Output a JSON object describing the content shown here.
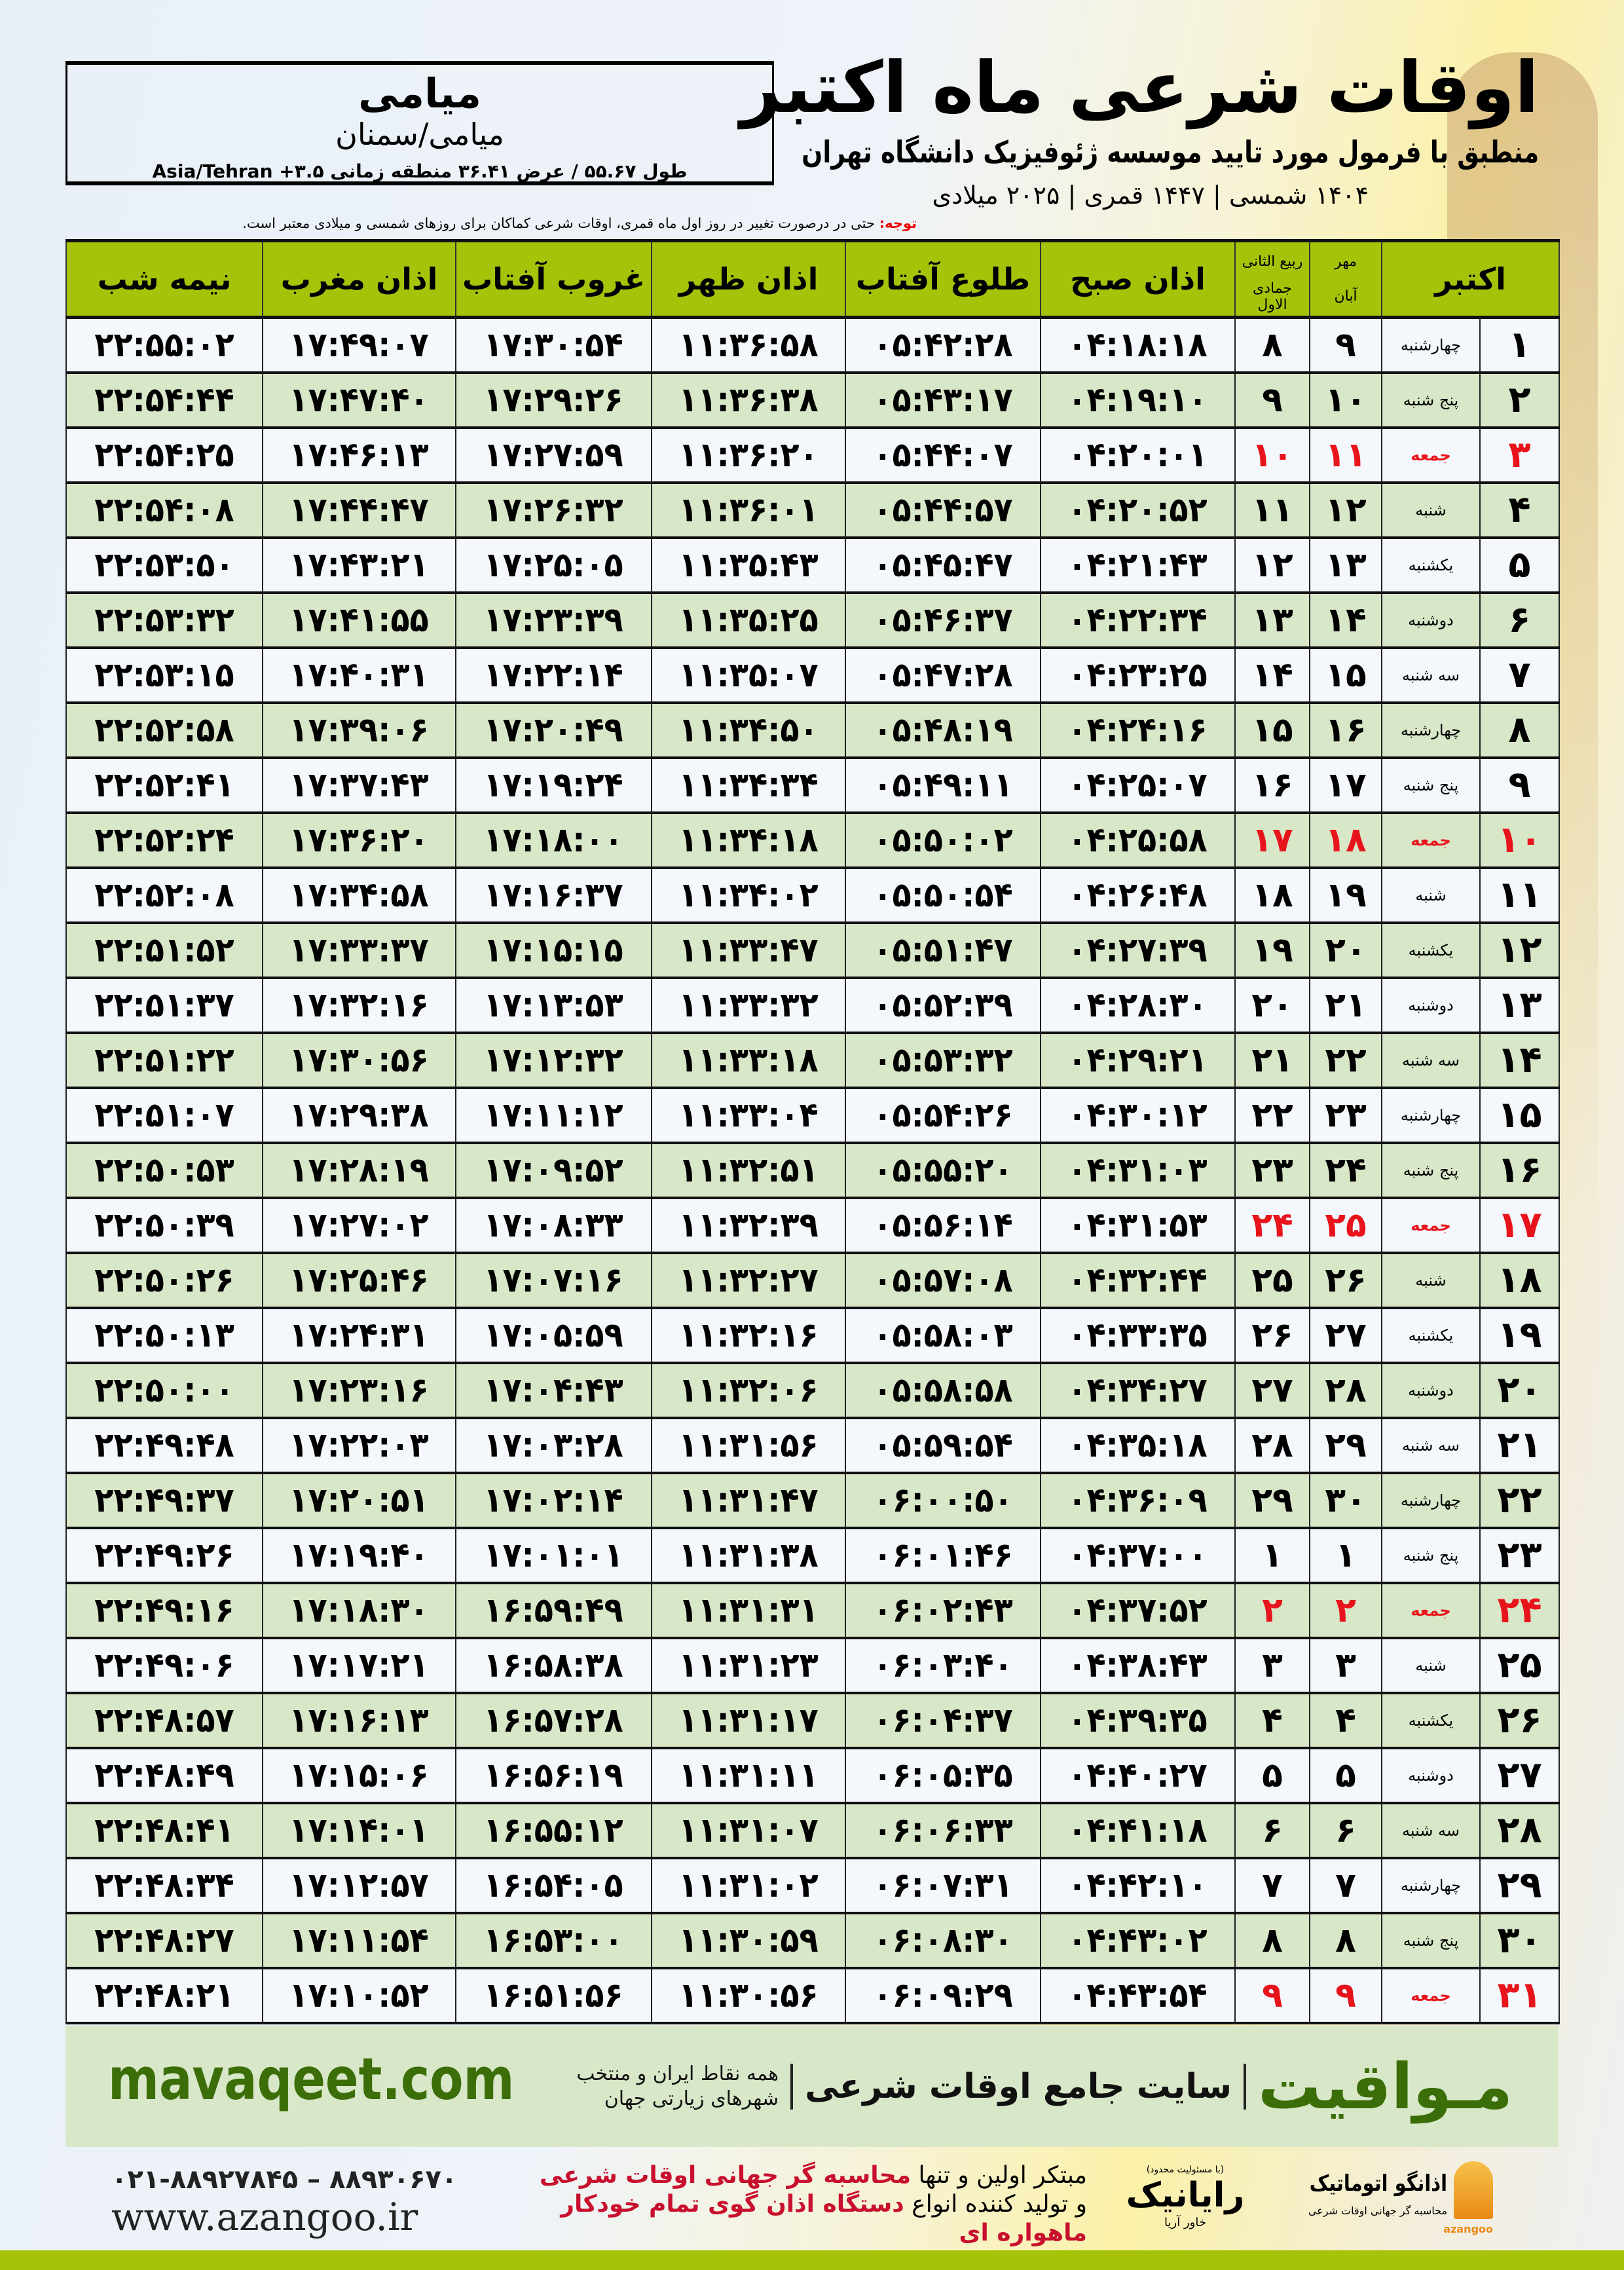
{
  "header": {
    "title": "اوقات شرعی ماه اکتبر",
    "subtitle": "منطبق با فرمول مورد تایید موسسه ژئوفیزیک دانشگاه تهران",
    "years": "۱۴۰۴ شمسی | ۱۴۴۷ قمری | ۲۰۲۵ میلادی"
  },
  "location": {
    "name": "میامی",
    "region": "میامی/سمنان",
    "coords": "طول ۵۵.۶۷ / عرض ۳۶.۴۱ منطقه زمانی ۳.۵+ Asia/Tehran"
  },
  "note": {
    "label": "توجه:",
    "text": " حتی در درصورت تغییر در روز اول ماه قمری، اوقات شرعی کماکان برای روزهای شمسی و میلادی معتبر است."
  },
  "columns": {
    "month": "اکتبر",
    "shamsi_top": "مهر",
    "shamsi_bottom": "آبان",
    "lunar_top": "ربیع الثانی",
    "lunar_bottom": "جمادی الاول",
    "sobh": "اذان صبح",
    "tolu": "طلوع آفتاب",
    "zohr": "اذان ظهر",
    "ghorub": "غروب آفتاب",
    "maghreb": "اذان مغرب",
    "nimeshab": "نیمه شب"
  },
  "colors": {
    "header_green": "#a6c30a",
    "row_green": "#d8e7c8",
    "friday_red": "#e8141c",
    "brand_green": "#3b6d08"
  },
  "rows": [
    [
      "۱",
      "چهارشنبه",
      "۹",
      "۸",
      "۰۴:۱۸:۱۸",
      "۰۵:۴۲:۲۸",
      "۱۱:۳۶:۵۸",
      "۱۷:۳۰:۵۴",
      "۱۷:۴۹:۰۷",
      "۲۲:۵۵:۰۲"
    ],
    [
      "۲",
      "پنج شنبه",
      "۱۰",
      "۹",
      "۰۴:۱۹:۱۰",
      "۰۵:۴۳:۱۷",
      "۱۱:۳۶:۳۸",
      "۱۷:۲۹:۲۶",
      "۱۷:۴۷:۴۰",
      "۲۲:۵۴:۴۴"
    ],
    [
      "۳",
      "جمعه",
      "۱۱",
      "۱۰",
      "۰۴:۲۰:۰۱",
      "۰۵:۴۴:۰۷",
      "۱۱:۳۶:۲۰",
      "۱۷:۲۷:۵۹",
      "۱۷:۴۶:۱۳",
      "۲۲:۵۴:۲۵"
    ],
    [
      "۴",
      "شنبه",
      "۱۲",
      "۱۱",
      "۰۴:۲۰:۵۲",
      "۰۵:۴۴:۵۷",
      "۱۱:۳۶:۰۱",
      "۱۷:۲۶:۳۲",
      "۱۷:۴۴:۴۷",
      "۲۲:۵۴:۰۸"
    ],
    [
      "۵",
      "یکشنبه",
      "۱۳",
      "۱۲",
      "۰۴:۲۱:۴۳",
      "۰۵:۴۵:۴۷",
      "۱۱:۳۵:۴۳",
      "۱۷:۲۵:۰۵",
      "۱۷:۴۳:۲۱",
      "۲۲:۵۳:۵۰"
    ],
    [
      "۶",
      "دوشنبه",
      "۱۴",
      "۱۳",
      "۰۴:۲۲:۳۴",
      "۰۵:۴۶:۳۷",
      "۱۱:۳۵:۲۵",
      "۱۷:۲۳:۳۹",
      "۱۷:۴۱:۵۵",
      "۲۲:۵۳:۳۲"
    ],
    [
      "۷",
      "سه شنبه",
      "۱۵",
      "۱۴",
      "۰۴:۲۳:۲۵",
      "۰۵:۴۷:۲۸",
      "۱۱:۳۵:۰۷",
      "۱۷:۲۲:۱۴",
      "۱۷:۴۰:۳۱",
      "۲۲:۵۳:۱۵"
    ],
    [
      "۸",
      "چهارشنبه",
      "۱۶",
      "۱۵",
      "۰۴:۲۴:۱۶",
      "۰۵:۴۸:۱۹",
      "۱۱:۳۴:۵۰",
      "۱۷:۲۰:۴۹",
      "۱۷:۳۹:۰۶",
      "۲۲:۵۲:۵۸"
    ],
    [
      "۹",
      "پنج شنبه",
      "۱۷",
      "۱۶",
      "۰۴:۲۵:۰۷",
      "۰۵:۴۹:۱۱",
      "۱۱:۳۴:۳۴",
      "۱۷:۱۹:۲۴",
      "۱۷:۳۷:۴۳",
      "۲۲:۵۲:۴۱"
    ],
    [
      "۱۰",
      "جمعه",
      "۱۸",
      "۱۷",
      "۰۴:۲۵:۵۸",
      "۰۵:۵۰:۰۲",
      "۱۱:۳۴:۱۸",
      "۱۷:۱۸:۰۰",
      "۱۷:۳۶:۲۰",
      "۲۲:۵۲:۲۴"
    ],
    [
      "۱۱",
      "شنبه",
      "۱۹",
      "۱۸",
      "۰۴:۲۶:۴۸",
      "۰۵:۵۰:۵۴",
      "۱۱:۳۴:۰۲",
      "۱۷:۱۶:۳۷",
      "۱۷:۳۴:۵۸",
      "۲۲:۵۲:۰۸"
    ],
    [
      "۱۲",
      "یکشنبه",
      "۲۰",
      "۱۹",
      "۰۴:۲۷:۳۹",
      "۰۵:۵۱:۴۷",
      "۱۱:۳۳:۴۷",
      "۱۷:۱۵:۱۵",
      "۱۷:۳۳:۳۷",
      "۲۲:۵۱:۵۲"
    ],
    [
      "۱۳",
      "دوشنبه",
      "۲۱",
      "۲۰",
      "۰۴:۲۸:۳۰",
      "۰۵:۵۲:۳۹",
      "۱۱:۳۳:۳۲",
      "۱۷:۱۳:۵۳",
      "۱۷:۳۲:۱۶",
      "۲۲:۵۱:۳۷"
    ],
    [
      "۱۴",
      "سه شنبه",
      "۲۲",
      "۲۱",
      "۰۴:۲۹:۲۱",
      "۰۵:۵۳:۳۲",
      "۱۱:۳۳:۱۸",
      "۱۷:۱۲:۳۲",
      "۱۷:۳۰:۵۶",
      "۲۲:۵۱:۲۲"
    ],
    [
      "۱۵",
      "چهارشنبه",
      "۲۳",
      "۲۲",
      "۰۴:۳۰:۱۲",
      "۰۵:۵۴:۲۶",
      "۱۱:۳۳:۰۴",
      "۱۷:۱۱:۱۲",
      "۱۷:۲۹:۳۸",
      "۲۲:۵۱:۰۷"
    ],
    [
      "۱۶",
      "پنج شنبه",
      "۲۴",
      "۲۳",
      "۰۴:۳۱:۰۳",
      "۰۵:۵۵:۲۰",
      "۱۱:۳۲:۵۱",
      "۱۷:۰۹:۵۲",
      "۱۷:۲۸:۱۹",
      "۲۲:۵۰:۵۳"
    ],
    [
      "۱۷",
      "جمعه",
      "۲۵",
      "۲۴",
      "۰۴:۳۱:۵۳",
      "۰۵:۵۶:۱۴",
      "۱۱:۳۲:۳۹",
      "۱۷:۰۸:۳۳",
      "۱۷:۲۷:۰۲",
      "۲۲:۵۰:۳۹"
    ],
    [
      "۱۸",
      "شنبه",
      "۲۶",
      "۲۵",
      "۰۴:۳۲:۴۴",
      "۰۵:۵۷:۰۸",
      "۱۱:۳۲:۲۷",
      "۱۷:۰۷:۱۶",
      "۱۷:۲۵:۴۶",
      "۲۲:۵۰:۲۶"
    ],
    [
      "۱۹",
      "یکشنبه",
      "۲۷",
      "۲۶",
      "۰۴:۳۳:۳۵",
      "۰۵:۵۸:۰۳",
      "۱۱:۳۲:۱۶",
      "۱۷:۰۵:۵۹",
      "۱۷:۲۴:۳۱",
      "۲۲:۵۰:۱۳"
    ],
    [
      "۲۰",
      "دوشنبه",
      "۲۸",
      "۲۷",
      "۰۴:۳۴:۲۷",
      "۰۵:۵۸:۵۸",
      "۱۱:۳۲:۰۶",
      "۱۷:۰۴:۴۳",
      "۱۷:۲۳:۱۶",
      "۲۲:۵۰:۰۰"
    ],
    [
      "۲۱",
      "سه شنبه",
      "۲۹",
      "۲۸",
      "۰۴:۳۵:۱۸",
      "۰۵:۵۹:۵۴",
      "۱۱:۳۱:۵۶",
      "۱۷:۰۳:۲۸",
      "۱۷:۲۲:۰۳",
      "۲۲:۴۹:۴۸"
    ],
    [
      "۲۲",
      "چهارشنبه",
      "۳۰",
      "۲۹",
      "۰۴:۳۶:۰۹",
      "۰۶:۰۰:۵۰",
      "۱۱:۳۱:۴۷",
      "۱۷:۰۲:۱۴",
      "۱۷:۲۰:۵۱",
      "۲۲:۴۹:۳۷"
    ],
    [
      "۲۳",
      "پنج شنبه",
      "۱",
      "۱",
      "۰۴:۳۷:۰۰",
      "۰۶:۰۱:۴۶",
      "۱۱:۳۱:۳۸",
      "۱۷:۰۱:۰۱",
      "۱۷:۱۹:۴۰",
      "۲۲:۴۹:۲۶"
    ],
    [
      "۲۴",
      "جمعه",
      "۲",
      "۲",
      "۰۴:۳۷:۵۲",
      "۰۶:۰۲:۴۳",
      "۱۱:۳۱:۳۱",
      "۱۶:۵۹:۴۹",
      "۱۷:۱۸:۳۰",
      "۲۲:۴۹:۱۶"
    ],
    [
      "۲۵",
      "شنبه",
      "۳",
      "۳",
      "۰۴:۳۸:۴۳",
      "۰۶:۰۳:۴۰",
      "۱۱:۳۱:۲۳",
      "۱۶:۵۸:۳۸",
      "۱۷:۱۷:۲۱",
      "۲۲:۴۹:۰۶"
    ],
    [
      "۲۶",
      "یکشنبه",
      "۴",
      "۴",
      "۰۴:۳۹:۳۵",
      "۰۶:۰۴:۳۷",
      "۱۱:۳۱:۱۷",
      "۱۶:۵۷:۲۸",
      "۱۷:۱۶:۱۳",
      "۲۲:۴۸:۵۷"
    ],
    [
      "۲۷",
      "دوشنبه",
      "۵",
      "۵",
      "۰۴:۴۰:۲۷",
      "۰۶:۰۵:۳۵",
      "۱۱:۳۱:۱۱",
      "۱۶:۵۶:۱۹",
      "۱۷:۱۵:۰۶",
      "۲۲:۴۸:۴۹"
    ],
    [
      "۲۸",
      "سه شنبه",
      "۶",
      "۶",
      "۰۴:۴۱:۱۸",
      "۰۶:۰۶:۳۳",
      "۱۱:۳۱:۰۷",
      "۱۶:۵۵:۱۲",
      "۱۷:۱۴:۰۱",
      "۲۲:۴۸:۴۱"
    ],
    [
      "۲۹",
      "چهارشنبه",
      "۷",
      "۷",
      "۰۴:۴۲:۱۰",
      "۰۶:۰۷:۳۱",
      "۱۱:۳۱:۰۲",
      "۱۶:۵۴:۰۵",
      "۱۷:۱۲:۵۷",
      "۲۲:۴۸:۳۴"
    ],
    [
      "۳۰",
      "پنج شنبه",
      "۸",
      "۸",
      "۰۴:۴۳:۰۲",
      "۰۶:۰۸:۳۰",
      "۱۱:۳۰:۵۹",
      "۱۶:۵۳:۰۰",
      "۱۷:۱۱:۵۴",
      "۲۲:۴۸:۲۷"
    ],
    [
      "۳۱",
      "جمعه",
      "۹",
      "۹",
      "۰۴:۴۳:۵۴",
      "۰۶:۰۹:۲۹",
      "۱۱:۳۰:۵۶",
      "۱۶:۵۱:۵۶",
      "۱۷:۱۰:۵۲",
      "۲۲:۴۸:۲۱"
    ]
  ],
  "friday_label": "جمعه",
  "footer": {
    "brand": "مـواقیت",
    "brand_tagline": "سایت جامع اوقات شرعی",
    "brand_sub": "همه نقاط ایران و منتخب شهرهای زیارتی جهان",
    "site": "mavaqeet.com",
    "slogan_1a": "مبتکر اولین و تنها ",
    "slogan_1b": "محاسبه گر جهانی اوقات شرعی",
    "slogan_2a": "و تولید کننده انواع ",
    "slogan_2b": "دستگاه اذان گوی تمام خودکار ماهواره ای",
    "phone": "۰۲۱-۸۸۹۲۷۸۴۵ – ۸۸۹۳۰۶۷۰",
    "www": "www.azangoo.ir",
    "rayanik_small": "(با مسئولیت محدود)",
    "rayanik": "رایانیک",
    "rayanik_sub": "خاور آریا",
    "azangoo_title": "اذانگو اتوماتیک",
    "azangoo_sub": "محاسبه گر جهانی اوقات شرعی",
    "azangoo_latin": "azangoo"
  }
}
